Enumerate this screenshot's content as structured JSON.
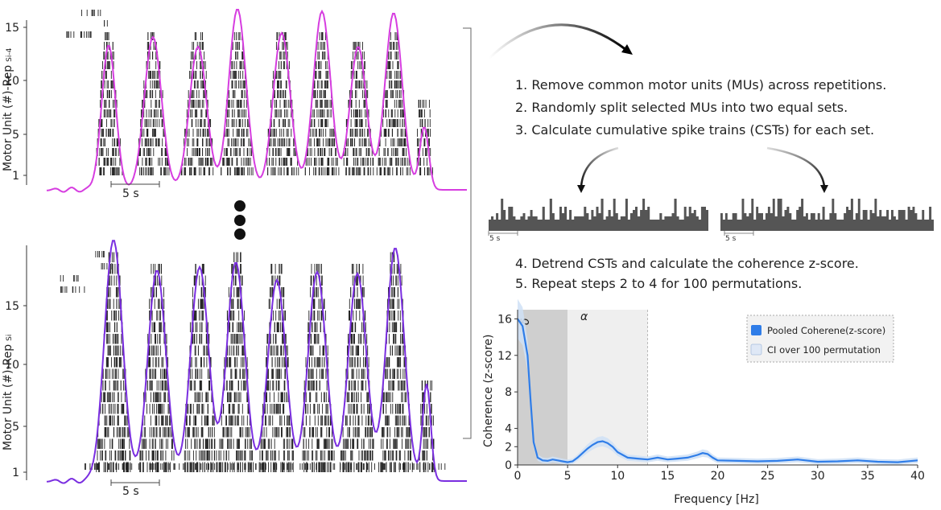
{
  "top_panel": {
    "ylabel_main": "Motor Unit (#)-Rep",
    "ylabel_sub": "Si-4",
    "yticks": [
      "1",
      "5",
      "10",
      "15"
    ],
    "scalebar": "5 s",
    "color": "#d63de0"
  },
  "bottom_panel": {
    "ylabel_main": "Motor Unit (#)-Rep",
    "ylabel_sub": "Si",
    "yticks": [
      "1",
      "5",
      "10",
      "15"
    ],
    "scalebar": "5 s",
    "color": "#7a2ee0"
  },
  "steps_a": [
    "1. Remove common motor units (MUs) across repetitions.",
    "2. Randomly split selected MUs into two equal sets.",
    "3. Calculate cumulative spike trains (CSTs) for each set."
  ],
  "steps_b": [
    "4. Detrend CSTs and calculate the coherence z-score.",
    "5. Repeat steps 2 to 4 for 100 permutations."
  ],
  "cst_left": {
    "scalebar": "5 s"
  },
  "cst_right": {
    "scalebar": "5 s"
  },
  "band_delta": "δ",
  "band_alpha": "α",
  "legend": {
    "pooled": "Pooled Coherene(z-score)",
    "ci": "CI over 100 permutation",
    "pooled_color": "#2f7de8",
    "ci_color": "#dfe8f6"
  },
  "chart_data": {
    "type": "line",
    "title": "",
    "xlabel": "Frequency [Hz]",
    "ylabel": "Coherence (z-score)",
    "xlim": [
      0,
      40
    ],
    "ylim": [
      0,
      17
    ],
    "xticks": [
      0,
      5,
      10,
      15,
      20,
      25,
      30,
      35,
      40
    ],
    "yticks": [
      0,
      2,
      4,
      8,
      12,
      16
    ],
    "bands": [
      {
        "name": "delta",
        "range": [
          0,
          5
        ]
      },
      {
        "name": "alpha",
        "range": [
          5,
          13
        ]
      }
    ],
    "series": [
      {
        "name": "Pooled Coherene(z-score)",
        "x": [
          0,
          0.5,
          1,
          1.3,
          1.6,
          2,
          2.5,
          3,
          3.5,
          4,
          4.5,
          5,
          5.5,
          6,
          6.5,
          7,
          7.5,
          8,
          8.5,
          9,
          9.5,
          10,
          11,
          12,
          13,
          14,
          15,
          16,
          17,
          18,
          18.5,
          19,
          19.5,
          20,
          22,
          24,
          26,
          28,
          30,
          32,
          34,
          36,
          38,
          40
        ],
        "y": [
          16,
          15.2,
          12,
          7,
          2.5,
          0.8,
          0.5,
          0.45,
          0.6,
          0.5,
          0.4,
          0.3,
          0.4,
          0.8,
          1.3,
          1.8,
          2.2,
          2.5,
          2.6,
          2.4,
          2.0,
          1.4,
          0.8,
          0.7,
          0.6,
          0.8,
          0.6,
          0.7,
          0.8,
          1.1,
          1.3,
          1.2,
          0.8,
          0.5,
          0.45,
          0.4,
          0.45,
          0.6,
          0.35,
          0.4,
          0.5,
          0.35,
          0.3,
          0.5
        ]
      }
    ]
  }
}
